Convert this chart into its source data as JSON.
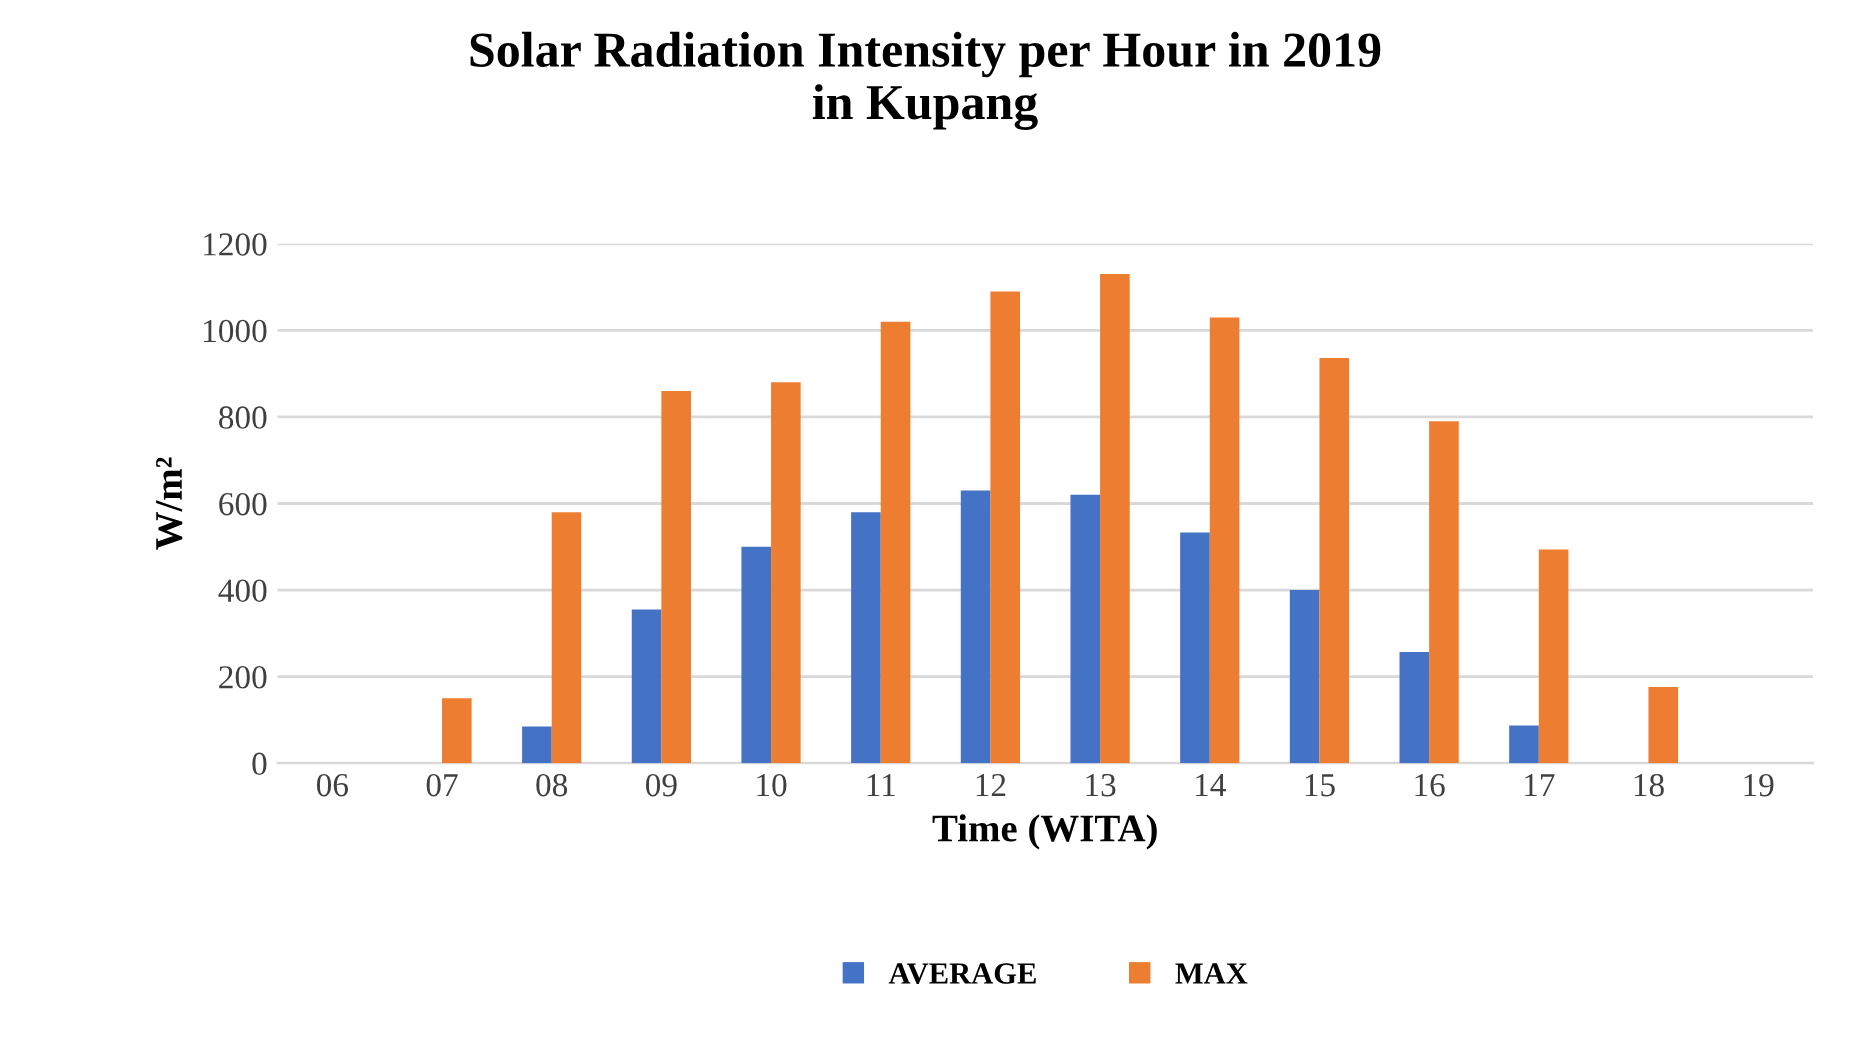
{
  "chart_data": {
    "type": "bar",
    "title": "Solar Radiation Intensity per Hour in 2019\nin Kupang",
    "xlabel": "Time (WITA)",
    "ylabel": "W/m²",
    "categories": [
      "06",
      "07",
      "08",
      "09",
      "10",
      "11",
      "12",
      "13",
      "14",
      "15",
      "16",
      "17",
      "18",
      "19"
    ],
    "series": [
      {
        "name": "AVERAGE",
        "color": "#4472c4",
        "values": [
          0,
          0,
          85,
          355,
          500,
          580,
          630,
          620,
          533,
          400,
          257,
          87,
          0,
          0
        ]
      },
      {
        "name": "MAX",
        "color": "#ed7d31",
        "values": [
          0,
          150,
          580,
          860,
          880,
          1020,
          1090,
          1130,
          1030,
          936,
          790,
          494,
          176,
          0
        ]
      }
    ],
    "ylim": [
      0,
      1200
    ],
    "yticks": [
      0,
      200,
      400,
      600,
      800,
      1000,
      1200
    ],
    "grid": "y",
    "legend": "bottom"
  }
}
